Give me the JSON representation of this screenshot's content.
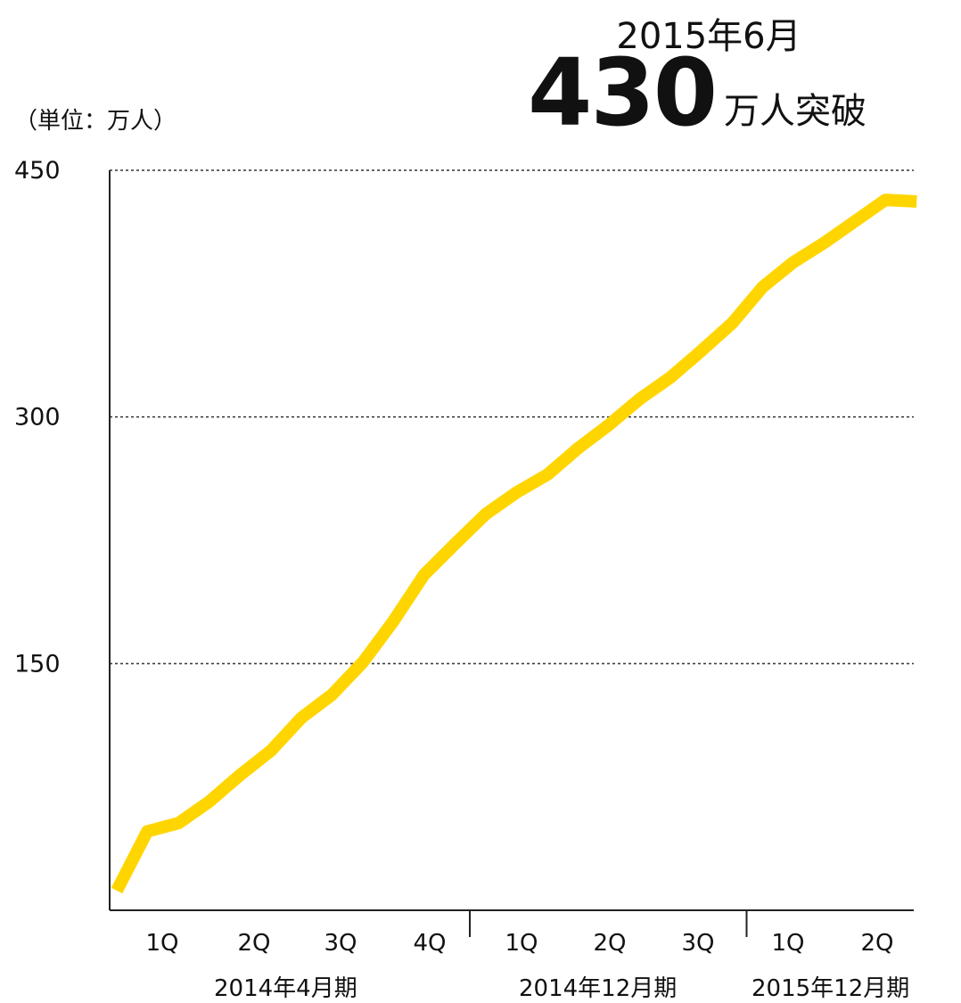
{
  "headline": {
    "date": "2015年6月",
    "number": "430",
    "suffix": "万人突破"
  },
  "unit_label": "（単位：万人）",
  "colors": {
    "line": "#FFD500",
    "axis": "#222222",
    "grid": "#333333"
  },
  "chart_data": {
    "type": "line",
    "title": "",
    "ylabel": "（単位：万人）",
    "ylim": [
      0,
      450
    ],
    "yticks": [
      150,
      300,
      450
    ],
    "grid": "horizontal dotted",
    "quarter_labels": [
      "1Q",
      "2Q",
      "3Q",
      "4Q",
      "1Q",
      "2Q",
      "3Q",
      "1Q",
      "2Q"
    ],
    "period_groups": [
      {
        "label": "2014年4月期",
        "quarters": [
          "1Q",
          "2Q",
          "3Q",
          "4Q"
        ]
      },
      {
        "label": "2014年12月期",
        "quarters": [
          "1Q",
          "2Q",
          "3Q"
        ]
      },
      {
        "label": "2015年12月期",
        "quarters": [
          "1Q",
          "2Q"
        ]
      }
    ],
    "series": [
      {
        "x": [
          0,
          0.33,
          0.67,
          1,
          1.33,
          1.67,
          2,
          2.33,
          2.67,
          3,
          3.33,
          3.67,
          4,
          4.33,
          4.67,
          5,
          5.33,
          5.67,
          6,
          6.33,
          6.67,
          7,
          7.33,
          7.67,
          8,
          8.33,
          8.67
        ],
        "values": [
          12,
          48,
          53,
          66,
          82,
          97,
          117,
          131,
          151,
          176,
          204,
          223,
          241,
          254,
          265,
          281,
          295,
          311,
          324,
          340,
          357,
          379,
          394,
          406,
          419,
          432,
          431
        ]
      }
    ]
  }
}
